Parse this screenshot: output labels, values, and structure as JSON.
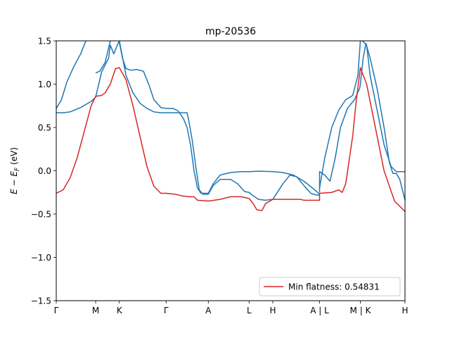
{
  "chart_data": {
    "type": "line",
    "title": "mp-20536",
    "ylabel": "E − E_F (eV)",
    "ylim": [
      -1.5,
      1.5
    ],
    "xlim": [
      0,
      1
    ],
    "yticks": [
      {
        "v": -1.5,
        "label": "−1.5"
      },
      {
        "v": -1.0,
        "label": "−1.0"
      },
      {
        "v": -0.5,
        "label": "−0.5"
      },
      {
        "v": 0.0,
        "label": "0.0"
      },
      {
        "v": 0.5,
        "label": "0.5"
      },
      {
        "v": 1.0,
        "label": "1.0"
      },
      {
        "v": 1.5,
        "label": "1.5"
      }
    ],
    "xticks": [
      {
        "x": 0.0,
        "label": "Γ"
      },
      {
        "x": 0.113,
        "label": "M"
      },
      {
        "x": 0.181,
        "label": "K"
      },
      {
        "x": 0.315,
        "label": "Γ"
      },
      {
        "x": 0.436,
        "label": "A"
      },
      {
        "x": 0.553,
        "label": "L"
      },
      {
        "x": 0.621,
        "label": "H"
      },
      {
        "x": 0.755,
        "label": "A | L"
      },
      {
        "x": 0.872,
        "label": "M | K"
      },
      {
        "x": 1.0,
        "label": "H"
      }
    ],
    "legend": {
      "label": "Min flatness: 0.54831",
      "position": "lower-right",
      "color": "#d62728"
    },
    "series": [
      {
        "name": "Min flatness: 0.54831",
        "color": "#d62728",
        "points": [
          [
            0.0,
            -0.26
          ],
          [
            0.02,
            -0.22
          ],
          [
            0.04,
            -0.08
          ],
          [
            0.06,
            0.15
          ],
          [
            0.08,
            0.45
          ],
          [
            0.1,
            0.75
          ],
          [
            0.113,
            0.86
          ],
          [
            0.13,
            0.87
          ],
          [
            0.14,
            0.9
          ],
          [
            0.155,
            1.0
          ],
          [
            0.17,
            1.18
          ],
          [
            0.181,
            1.19
          ],
          [
            0.2,
            1.05
          ],
          [
            0.22,
            0.75
          ],
          [
            0.24,
            0.4
          ],
          [
            0.26,
            0.05
          ],
          [
            0.28,
            -0.18
          ],
          [
            0.3,
            -0.26
          ],
          [
            0.315,
            -0.26
          ],
          [
            0.34,
            -0.27
          ],
          [
            0.36,
            -0.29
          ],
          [
            0.38,
            -0.3
          ],
          [
            0.395,
            -0.3
          ],
          [
            0.405,
            -0.34
          ],
          [
            0.436,
            -0.35
          ],
          [
            0.47,
            -0.33
          ],
          [
            0.5,
            -0.3
          ],
          [
            0.53,
            -0.3
          ],
          [
            0.553,
            -0.32
          ],
          [
            0.565,
            -0.38
          ],
          [
            0.575,
            -0.45
          ],
          [
            0.59,
            -0.46
          ],
          [
            0.6,
            -0.38
          ],
          [
            0.621,
            -0.33
          ],
          [
            0.65,
            -0.33
          ],
          [
            0.7,
            -0.33
          ],
          [
            0.71,
            -0.34
          ],
          [
            0.755,
            -0.34
          ],
          [
            0.755,
            -0.26
          ],
          [
            0.79,
            -0.25
          ],
          [
            0.81,
            -0.22
          ],
          [
            0.82,
            -0.25
          ],
          [
            0.83,
            -0.15
          ],
          [
            0.85,
            0.4
          ],
          [
            0.86,
            0.8
          ],
          [
            0.872,
            1.19
          ],
          [
            0.89,
            1.0
          ],
          [
            0.91,
            0.6
          ],
          [
            0.94,
            0.0
          ],
          [
            0.97,
            -0.35
          ],
          [
            1.0,
            -0.47
          ]
        ]
      },
      {
        "name": "",
        "color": "#1f77b4",
        "points": [
          [
            0.0,
            0.72
          ],
          [
            0.015,
            0.82
          ],
          [
            0.03,
            1.02
          ],
          [
            0.05,
            1.2
          ],
          [
            0.07,
            1.35
          ],
          [
            0.085,
            1.5
          ]
        ]
      },
      {
        "name": "",
        "color": "#1f77b4",
        "points": [
          [
            0.0,
            0.67
          ],
          [
            0.02,
            0.67
          ],
          [
            0.04,
            0.68
          ],
          [
            0.07,
            0.73
          ],
          [
            0.1,
            0.8
          ],
          [
            0.113,
            0.85
          ],
          [
            0.13,
            1.14
          ],
          [
            0.15,
            1.3
          ],
          [
            0.155,
            1.45
          ],
          [
            0.165,
            1.35
          ],
          [
            0.175,
            1.45
          ],
          [
            0.181,
            1.5
          ]
        ]
      },
      {
        "name": "",
        "color": "#1f77b4",
        "points": [
          [
            0.113,
            1.13
          ],
          [
            0.125,
            1.15
          ],
          [
            0.14,
            1.25
          ],
          [
            0.155,
            1.5
          ]
        ]
      },
      {
        "name": "",
        "color": "#1f77b4",
        "points": [
          [
            0.181,
            1.5
          ],
          [
            0.2,
            1.1
          ],
          [
            0.22,
            0.9
          ],
          [
            0.24,
            0.78
          ],
          [
            0.26,
            0.72
          ],
          [
            0.28,
            0.68
          ],
          [
            0.3,
            0.67
          ],
          [
            0.315,
            0.67
          ],
          [
            0.34,
            0.67
          ],
          [
            0.36,
            0.67
          ],
          [
            0.375,
            0.67
          ],
          [
            0.38,
            0.58
          ],
          [
            0.39,
            0.35
          ],
          [
            0.4,
            0.05
          ],
          [
            0.41,
            -0.22
          ],
          [
            0.42,
            -0.27
          ],
          [
            0.436,
            -0.27
          ],
          [
            0.45,
            -0.17
          ],
          [
            0.47,
            -0.1
          ],
          [
            0.5,
            -0.1
          ],
          [
            0.52,
            -0.15
          ],
          [
            0.54,
            -0.24
          ],
          [
            0.553,
            -0.25
          ],
          [
            0.565,
            -0.29
          ],
          [
            0.58,
            -0.33
          ],
          [
            0.6,
            -0.34
          ],
          [
            0.621,
            -0.33
          ],
          [
            0.65,
            -0.15
          ],
          [
            0.67,
            -0.05
          ],
          [
            0.69,
            -0.07
          ],
          [
            0.71,
            -0.17
          ],
          [
            0.73,
            -0.26
          ],
          [
            0.745,
            -0.28
          ],
          [
            0.755,
            -0.28
          ]
        ]
      },
      {
        "name": "",
        "color": "#1f77b4",
        "points": [
          [
            0.181,
            1.48
          ],
          [
            0.19,
            1.3
          ],
          [
            0.2,
            1.18
          ],
          [
            0.215,
            1.16
          ],
          [
            0.23,
            1.17
          ],
          [
            0.25,
            1.15
          ],
          [
            0.265,
            1.0
          ],
          [
            0.28,
            0.82
          ],
          [
            0.3,
            0.73
          ],
          [
            0.315,
            0.72
          ],
          [
            0.335,
            0.72
          ],
          [
            0.35,
            0.69
          ],
          [
            0.365,
            0.6
          ],
          [
            0.375,
            0.5
          ],
          [
            0.385,
            0.3
          ],
          [
            0.395,
            0.0
          ],
          [
            0.405,
            -0.2
          ],
          [
            0.415,
            -0.26
          ],
          [
            0.436,
            -0.26
          ],
          [
            0.45,
            -0.15
          ],
          [
            0.47,
            -0.05
          ],
          [
            0.5,
            -0.02
          ],
          [
            0.53,
            -0.01
          ],
          [
            0.553,
            -0.01
          ],
          [
            0.58,
            -0.005
          ],
          [
            0.621,
            -0.01
          ],
          [
            0.65,
            -0.02
          ],
          [
            0.68,
            -0.05
          ],
          [
            0.71,
            -0.12
          ],
          [
            0.735,
            -0.2
          ],
          [
            0.755,
            -0.27
          ]
        ]
      },
      {
        "name": "",
        "color": "#1f77b4",
        "points": [
          [
            0.755,
            -0.25
          ],
          [
            0.755,
            -0.01
          ],
          [
            0.77,
            -0.05
          ],
          [
            0.785,
            -0.12
          ],
          [
            0.8,
            0.15
          ],
          [
            0.815,
            0.5
          ],
          [
            0.835,
            0.72
          ],
          [
            0.855,
            0.82
          ],
          [
            0.87,
            0.95
          ],
          [
            0.872,
            1.0
          ],
          [
            0.88,
            1.3
          ],
          [
            0.888,
            1.47
          ],
          [
            0.9,
            1.3
          ],
          [
            0.92,
            0.95
          ],
          [
            0.94,
            0.5
          ],
          [
            0.955,
            0.1
          ],
          [
            0.965,
            -0.03
          ],
          [
            0.975,
            -0.03
          ],
          [
            0.985,
            -0.1
          ],
          [
            1.0,
            -0.34
          ]
        ]
      },
      {
        "name": "",
        "color": "#1f77b4",
        "points": [
          [
            0.755,
            -0.2
          ],
          [
            0.77,
            0.15
          ],
          [
            0.79,
            0.5
          ],
          [
            0.81,
            0.7
          ],
          [
            0.83,
            0.82
          ],
          [
            0.85,
            0.87
          ],
          [
            0.865,
            1.1
          ],
          [
            0.872,
            1.5
          ]
        ]
      },
      {
        "name": "",
        "color": "#1f77b4",
        "points": [
          [
            0.878,
            1.5
          ],
          [
            0.89,
            1.45
          ],
          [
            0.9,
            1.1
          ],
          [
            0.92,
            0.7
          ],
          [
            0.94,
            0.3
          ],
          [
            0.96,
            0.05
          ],
          [
            0.975,
            -0.01
          ],
          [
            1.0,
            -0.01
          ]
        ]
      }
    ]
  }
}
